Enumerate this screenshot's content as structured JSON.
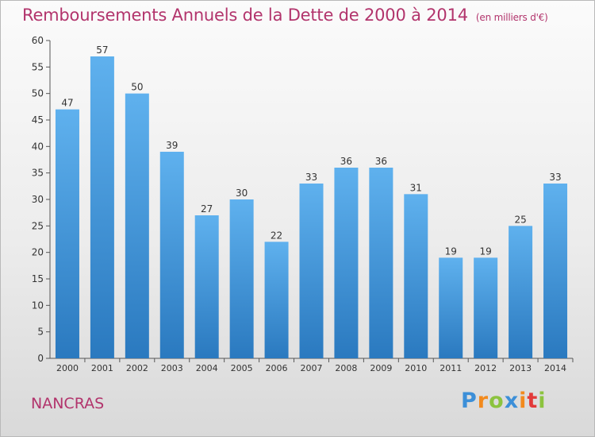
{
  "header": {
    "title": "Remboursements Annuels de la Dette de 2000 à 2014",
    "subtitle": "(en milliers d'€)"
  },
  "footer": {
    "town": "NANCRAS",
    "brand": "Proxiti"
  },
  "colors": {
    "title": "#b2346c",
    "bar_top": "#5fb1ee",
    "bar_bottom": "#2a79bf"
  },
  "chart_data": {
    "type": "bar",
    "categories": [
      "2000",
      "2001",
      "2002",
      "2003",
      "2004",
      "2005",
      "2006",
      "2007",
      "2008",
      "2009",
      "2010",
      "2011",
      "2012",
      "2013",
      "2014"
    ],
    "values": [
      47,
      57,
      50,
      39,
      27,
      30,
      22,
      33,
      36,
      36,
      31,
      19,
      19,
      25,
      33
    ],
    "title": "Remboursements Annuels de la Dette de 2000 à 2014",
    "subtitle": "(en milliers d'€)",
    "ylim": [
      0,
      60
    ],
    "yticks": [
      0,
      5,
      10,
      15,
      20,
      25,
      30,
      35,
      40,
      45,
      50,
      55,
      60
    ],
    "grid": false,
    "data_labels": true
  }
}
